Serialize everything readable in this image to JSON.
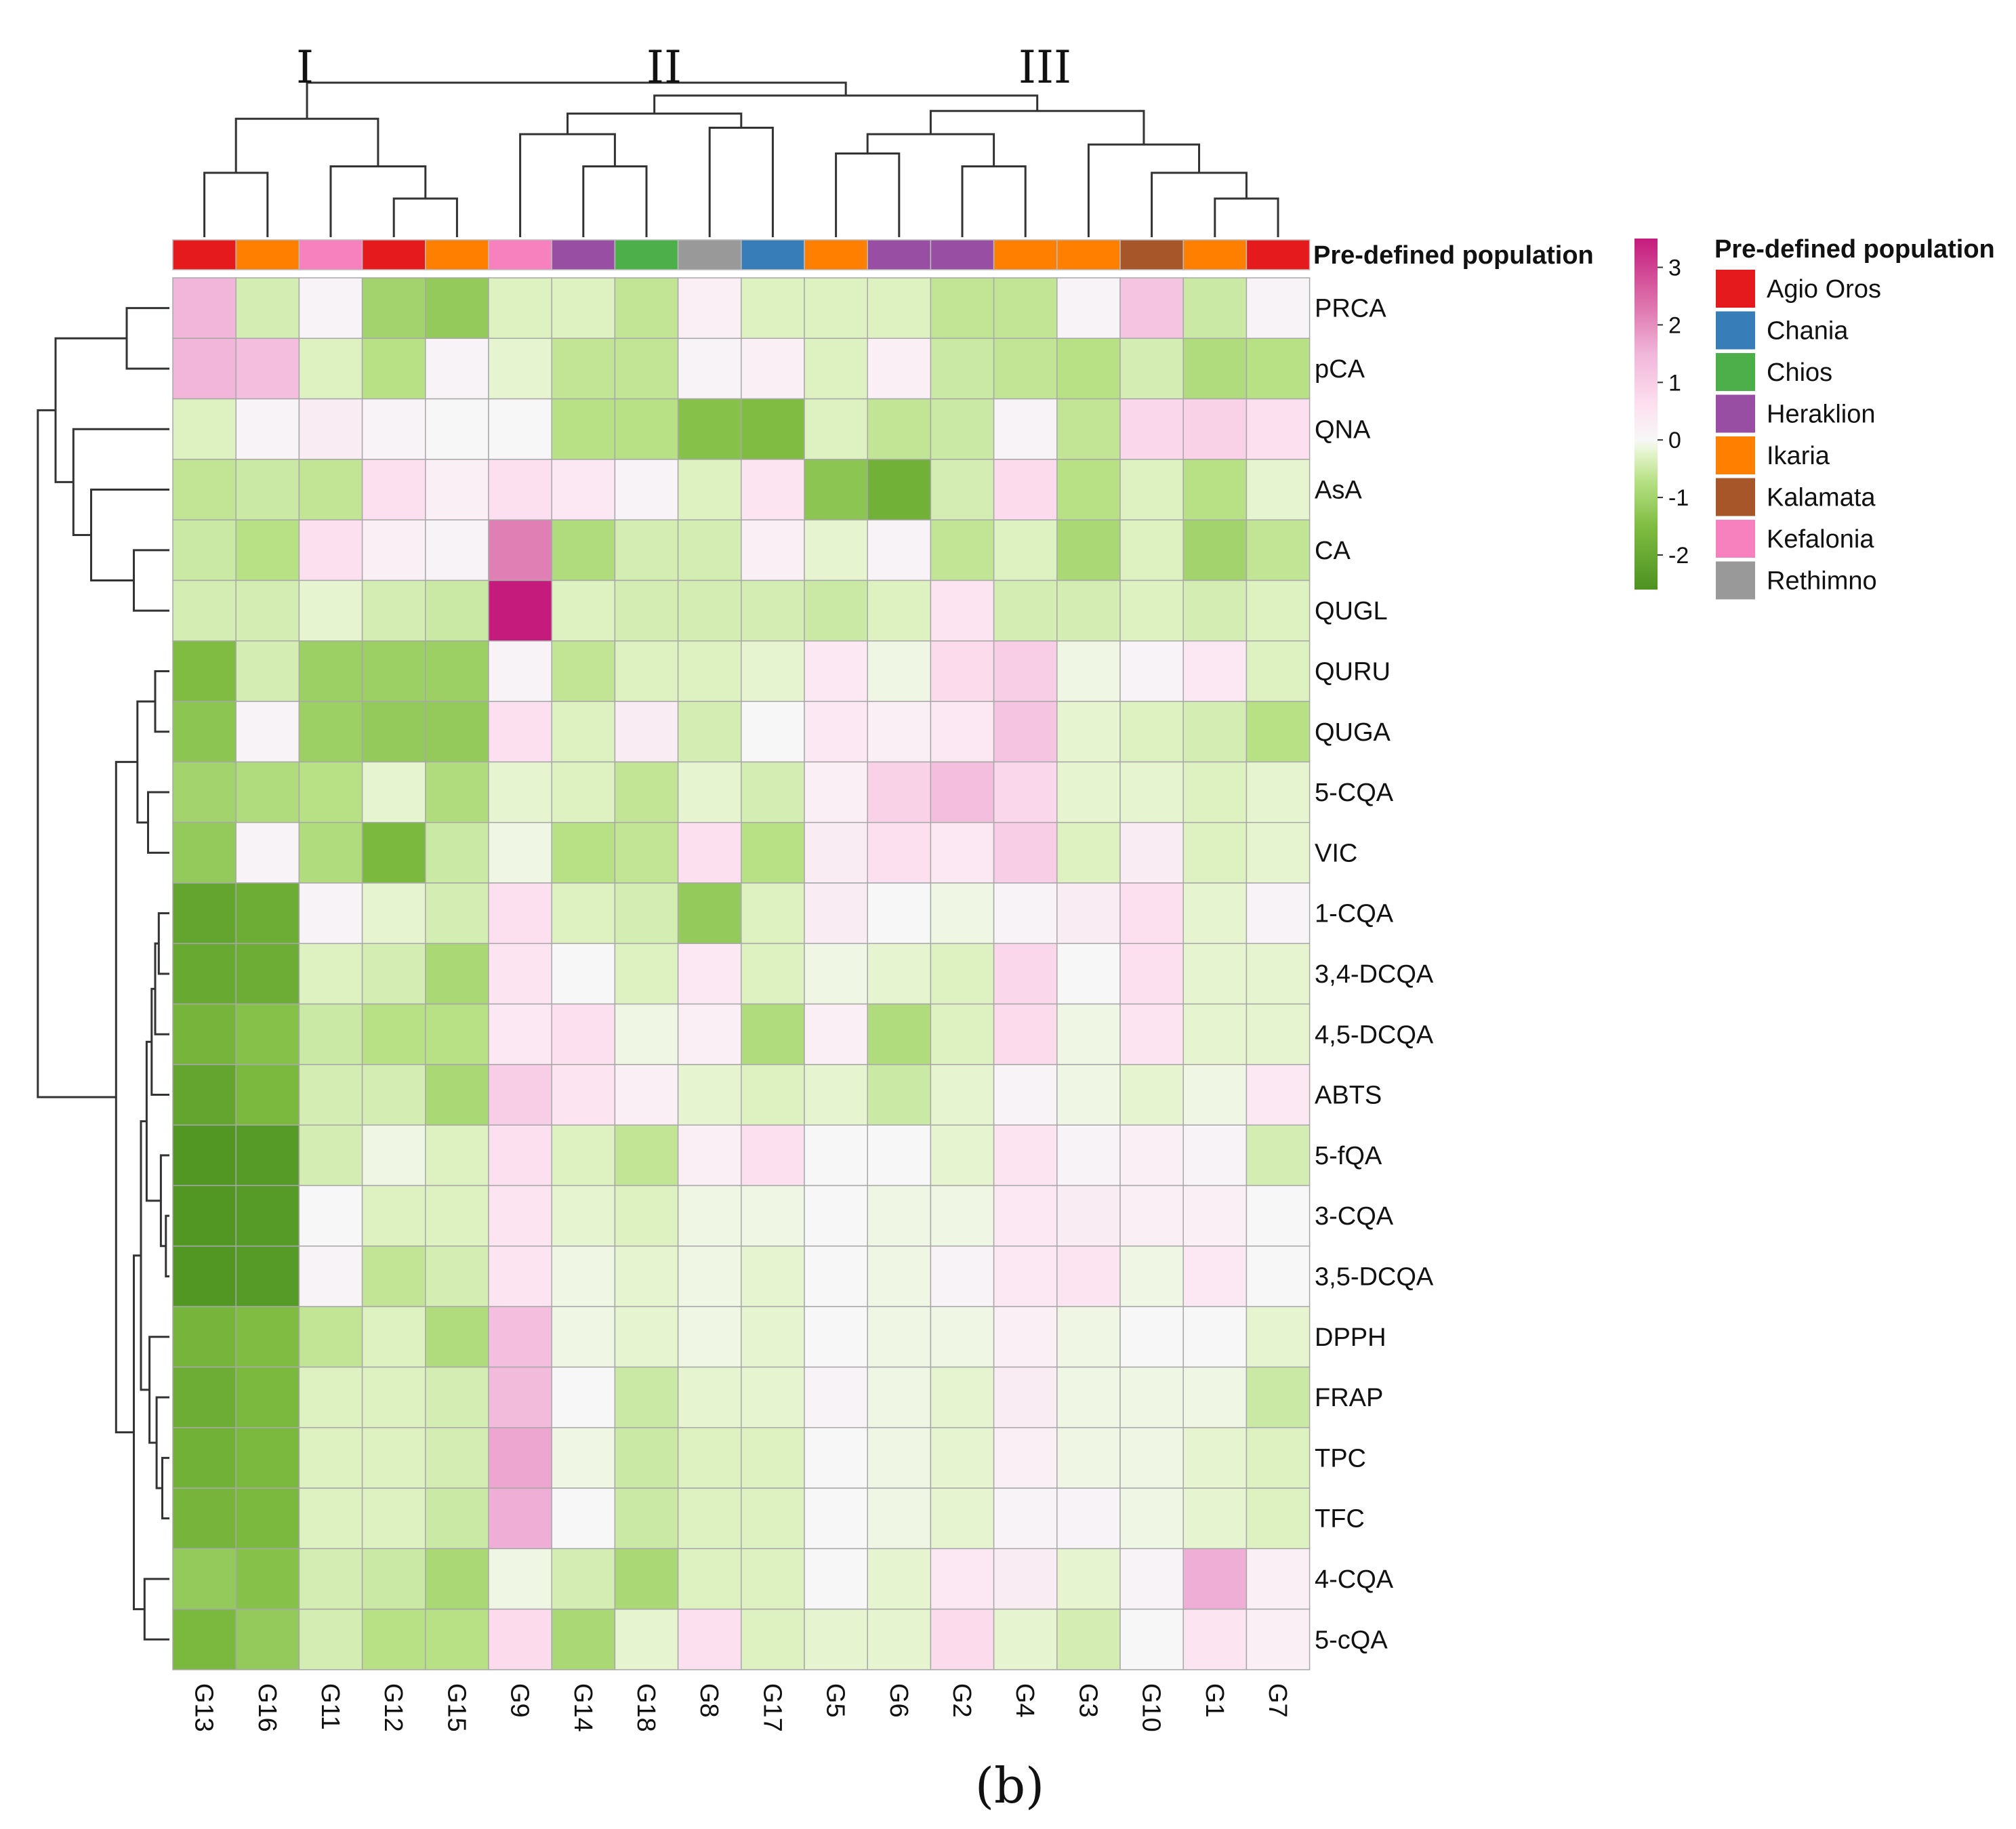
{
  "chart_data": {
    "type": "heatmap",
    "columns": [
      "G13",
      "G16",
      "G11",
      "G12",
      "G15",
      "G9",
      "G14",
      "G18",
      "G8",
      "G17",
      "G5",
      "G6",
      "G2",
      "G4",
      "G3",
      "G10",
      "G1",
      "G7"
    ],
    "rows": [
      "PRCA",
      "pCA",
      "QNA",
      "AsA",
      "CA",
      "QUGL",
      "QURU",
      "QUGA",
      "5-CQA",
      "VIC",
      "1-CQA",
      "3,4-DCQA",
      "4,5-DCQA",
      "ABTS",
      "5-fQA",
      "3-CQA",
      "3,5-DCQA",
      "DPPH",
      "FRAP",
      "TPC",
      "TFC",
      "4-CQA",
      "5-cQA"
    ],
    "values": [
      [
        1.5,
        -0.4,
        0.1,
        -1.0,
        -1.2,
        -0.3,
        -0.3,
        -0.6,
        0.2,
        -0.3,
        -0.3,
        -0.3,
        -0.6,
        -0.6,
        0.1,
        1.2,
        -0.5,
        0.1
      ],
      [
        1.5,
        1.3,
        -0.3,
        -0.7,
        0.1,
        -0.2,
        -0.6,
        -0.6,
        0.1,
        0.2,
        -0.3,
        0.2,
        -0.5,
        -0.6,
        -0.7,
        -0.4,
        -0.8,
        -0.7
      ],
      [
        -0.3,
        0.1,
        0.3,
        0.1,
        0,
        0,
        -0.7,
        -0.7,
        -1.4,
        -1.5,
        -0.3,
        -0.6,
        -0.5,
        0.1,
        -0.6,
        0.8,
        0.9,
        0.6
      ],
      [
        -0.6,
        -0.5,
        -0.6,
        0.6,
        0.2,
        0.6,
        0.4,
        0.1,
        -0.3,
        0.5,
        -1.3,
        -1.8,
        -0.4,
        0.7,
        -0.7,
        -0.3,
        -0.7,
        -0.2
      ],
      [
        -0.5,
        -0.7,
        0.6,
        0.2,
        0.1,
        2.2,
        -0.8,
        -0.4,
        -0.4,
        0.2,
        -0.2,
        0.1,
        -0.6,
        -0.3,
        -0.9,
        -0.3,
        -1.0,
        -0.6
      ],
      [
        -0.4,
        -0.4,
        -0.2,
        -0.4,
        -0.5,
        3.5,
        -0.3,
        -0.4,
        -0.4,
        -0.4,
        -0.5,
        -0.3,
        0.5,
        -0.4,
        -0.4,
        -0.3,
        -0.4,
        -0.3
      ],
      [
        -1.5,
        -0.4,
        -1.1,
        -1.1,
        -1.1,
        0.1,
        -0.6,
        -0.3,
        -0.3,
        -0.2,
        0.4,
        -0.1,
        0.7,
        1.0,
        -0.1,
        0.1,
        0.4,
        -0.3
      ],
      [
        -1.3,
        0.1,
        -1.1,
        -1.2,
        -1.2,
        0.6,
        -0.3,
        0.3,
        -0.4,
        0,
        0.4,
        0.2,
        0.4,
        1.2,
        -0.2,
        -0.3,
        -0.4,
        -0.7
      ],
      [
        -1.0,
        -0.8,
        -0.7,
        -0.2,
        -0.8,
        -0.2,
        -0.3,
        -0.6,
        -0.2,
        -0.4,
        0.2,
        0.9,
        1.3,
        0.8,
        -0.2,
        -0.2,
        -0.3,
        -0.2
      ],
      [
        -1.2,
        0.1,
        -0.8,
        -1.6,
        -0.5,
        -0.1,
        -0.7,
        -0.6,
        0.6,
        -0.7,
        0.3,
        0.6,
        0.4,
        1.0,
        -0.3,
        0.3,
        -0.3,
        -0.2
      ],
      [
        -2.1,
        -1.9,
        0.1,
        -0.2,
        -0.4,
        0.6,
        -0.3,
        -0.4,
        -1.2,
        -0.3,
        0.3,
        0,
        -0.1,
        0.1,
        0.3,
        0.6,
        -0.2,
        0.1
      ],
      [
        -2.0,
        -1.9,
        -0.3,
        -0.4,
        -0.9,
        0.5,
        0,
        -0.3,
        0.4,
        -0.3,
        -0.1,
        -0.2,
        -0.3,
        0.8,
        0,
        0.6,
        -0.2,
        -0.2
      ],
      [
        -1.7,
        -1.4,
        -0.5,
        -0.7,
        -0.7,
        0.4,
        0.6,
        -0.1,
        0.2,
        -0.8,
        0.2,
        -0.8,
        -0.3,
        0.7,
        -0.1,
        0.5,
        -0.2,
        -0.2
      ],
      [
        -2.1,
        -1.6,
        -0.4,
        -0.4,
        -0.9,
        1.0,
        0.5,
        0.2,
        -0.2,
        -0.3,
        -0.2,
        -0.5,
        -0.2,
        0.1,
        -0.1,
        -0.2,
        -0.1,
        0.4
      ],
      [
        -2.5,
        -2.4,
        -0.4,
        -0.1,
        -0.3,
        0.6,
        -0.3,
        -0.6,
        0.2,
        0.6,
        0,
        0,
        -0.2,
        0.5,
        0.1,
        0.2,
        0.1,
        -0.4
      ],
      [
        -2.5,
        -2.4,
        0,
        -0.3,
        -0.3,
        0.5,
        -0.2,
        -0.3,
        -0.1,
        -0.1,
        0,
        -0.1,
        -0.1,
        0.4,
        0.3,
        0.2,
        0.2,
        0
      ],
      [
        -2.5,
        -2.4,
        0.1,
        -0.6,
        -0.4,
        0.5,
        -0.1,
        -0.2,
        -0.1,
        -0.2,
        0,
        -0.1,
        0.1,
        0.4,
        0.5,
        -0.1,
        0.4,
        0
      ],
      [
        -1.7,
        -1.5,
        -0.6,
        -0.3,
        -0.8,
        1.3,
        -0.1,
        -0.2,
        -0.1,
        -0.2,
        0,
        -0.1,
        -0.1,
        0.2,
        -0.1,
        0,
        0,
        -0.2
      ],
      [
        -1.9,
        -1.6,
        -0.3,
        -0.3,
        -0.4,
        1.4,
        0,
        -0.5,
        -0.2,
        -0.2,
        0.1,
        -0.1,
        -0.2,
        0.3,
        -0.1,
        -0.1,
        -0.1,
        -0.5
      ],
      [
        -1.8,
        -1.6,
        -0.3,
        -0.3,
        -0.4,
        1.7,
        -0.1,
        -0.5,
        -0.3,
        -0.3,
        0,
        -0.1,
        -0.2,
        0.2,
        -0.1,
        -0.1,
        -0.2,
        -0.3
      ],
      [
        -1.7,
        -1.6,
        -0.3,
        -0.3,
        -0.5,
        1.6,
        0,
        -0.5,
        -0.3,
        -0.3,
        0,
        -0.1,
        -0.2,
        0.1,
        0.1,
        -0.1,
        -0.2,
        -0.3
      ],
      [
        -1.2,
        -1.4,
        -0.4,
        -0.5,
        -0.9,
        -0.1,
        -0.4,
        -0.9,
        -0.3,
        -0.3,
        0,
        -0.2,
        0.4,
        0.3,
        -0.2,
        0.1,
        1.6,
        0.2
      ],
      [
        -1.6,
        -1.2,
        -0.4,
        -0.7,
        -0.7,
        0.7,
        -0.9,
        -0.2,
        0.6,
        -0.3,
        -0.2,
        -0.2,
        0.7,
        -0.2,
        -0.4,
        0,
        0.5,
        0.2
      ]
    ],
    "column_populations": [
      "Agio Oros",
      "Ikaria",
      "Kefalonia",
      "Agio Oros",
      "Ikaria",
      "Kefalonia",
      "Heraklion",
      "Chios",
      "Rethimno",
      "Chania",
      "Ikaria",
      "Heraklion",
      "Heraklion",
      "Ikaria",
      "Ikaria",
      "Kalamata",
      "Ikaria",
      "Agio Oros"
    ],
    "annotation_label": "Pre-defined population",
    "legend_title": "Pre-defined population",
    "legend": [
      {
        "name": "Agio Oros",
        "color": "#e41a1c"
      },
      {
        "name": "Chania",
        "color": "#377eb8"
      },
      {
        "name": "Chios",
        "color": "#4daf4a"
      },
      {
        "name": "Heraklion",
        "color": "#984ea3"
      },
      {
        "name": "Ikaria",
        "color": "#ff7f00"
      },
      {
        "name": "Kalamata",
        "color": "#a65628"
      },
      {
        "name": "Kefalonia",
        "color": "#f781bf"
      },
      {
        "name": "Rethimno",
        "color": "#999999"
      }
    ],
    "colorbar": {
      "ticks": [
        "3",
        "2",
        "1",
        "0",
        "-1",
        "-2"
      ],
      "tick_values": [
        3,
        2,
        1,
        0,
        -1,
        -2
      ],
      "range": [
        -2.6,
        3.5
      ],
      "color_stops": [
        {
          "v": -2.6,
          "c": "#4d9221"
        },
        {
          "v": -1.5,
          "c": "#7fbc41"
        },
        {
          "v": -0.7,
          "c": "#b8e186"
        },
        {
          "v": -0.2,
          "c": "#e6f5d0"
        },
        {
          "v": 0,
          "c": "#f7f7f7"
        },
        {
          "v": 0.6,
          "c": "#fde0ef"
        },
        {
          "v": 1.5,
          "c": "#f1b6da"
        },
        {
          "v": 2.3,
          "c": "#de77ae"
        },
        {
          "v": 3.5,
          "c": "#c51b7d"
        }
      ]
    },
    "cluster_labels": [
      "I",
      "II",
      "III"
    ],
    "panel_label": "(b)"
  }
}
